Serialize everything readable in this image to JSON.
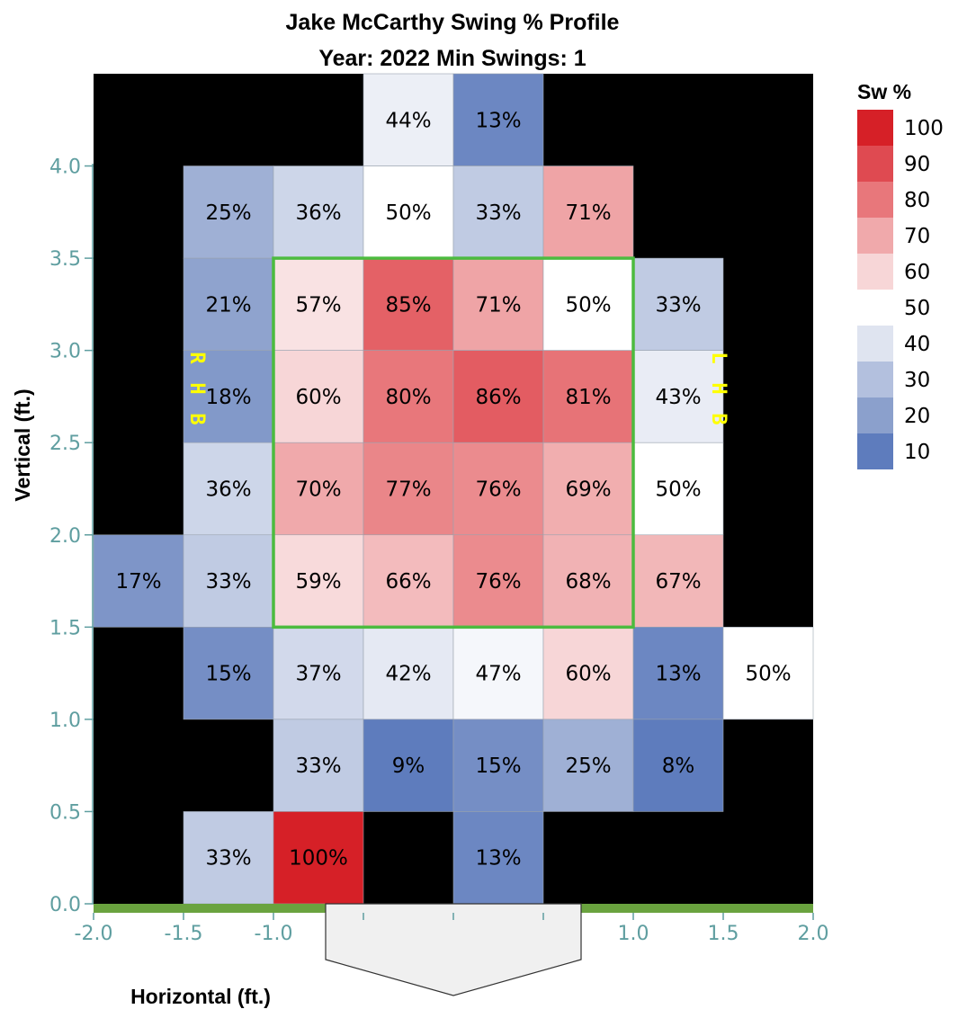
{
  "chart_data": {
    "type": "heatmap",
    "title": "Jake McCarthy Swing % Profile",
    "subtitle": "Year: 2022 Min Swings: 1",
    "xlabel": "Horizontal (ft.)",
    "ylabel": "Vertical (ft.)",
    "xlim": [
      -2.0,
      2.0
    ],
    "ylim": [
      0.0,
      4.5
    ],
    "x_ticks": [
      "-2.0",
      "-1.5",
      "-1.0",
      "-0.5",
      "0.0",
      "0.5",
      "1.0",
      "1.5",
      "2.0"
    ],
    "x_tick_values": [
      -2.0,
      -1.5,
      -1.0,
      -0.5,
      0.0,
      0.5,
      1.0,
      1.5,
      2.0
    ],
    "y_ticks": [
      "0.0",
      "0.5",
      "1.0",
      "1.5",
      "2.0",
      "2.5",
      "3.0",
      "3.5",
      "4.0"
    ],
    "y_tick_values": [
      0.0,
      0.5,
      1.0,
      1.5,
      2.0,
      2.5,
      3.0,
      3.5,
      4.0
    ],
    "cell_width_ft": 0.5,
    "cell_height_ft": 0.5,
    "background_color": "#000000",
    "cells": [
      {
        "x0": -0.5,
        "y0": 4.0,
        "value": 44,
        "label": "44%"
      },
      {
        "x0": 0.0,
        "y0": 4.0,
        "value": 13,
        "label": "13%"
      },
      {
        "x0": -1.5,
        "y0": 3.5,
        "value": 25,
        "label": "25%"
      },
      {
        "x0": -1.0,
        "y0": 3.5,
        "value": 36,
        "label": "36%"
      },
      {
        "x0": -0.5,
        "y0": 3.5,
        "value": 50,
        "label": "50%"
      },
      {
        "x0": 0.0,
        "y0": 3.5,
        "value": 33,
        "label": "33%"
      },
      {
        "x0": 0.5,
        "y0": 3.5,
        "value": 71,
        "label": "71%"
      },
      {
        "x0": -1.5,
        "y0": 3.0,
        "value": 21,
        "label": "21%"
      },
      {
        "x0": -1.0,
        "y0": 3.0,
        "value": 57,
        "label": "57%"
      },
      {
        "x0": -0.5,
        "y0": 3.0,
        "value": 85,
        "label": "85%"
      },
      {
        "x0": 0.0,
        "y0": 3.0,
        "value": 71,
        "label": "71%"
      },
      {
        "x0": 0.5,
        "y0": 3.0,
        "value": 50,
        "label": "50%"
      },
      {
        "x0": 1.0,
        "y0": 3.0,
        "value": 33,
        "label": "33%"
      },
      {
        "x0": -1.5,
        "y0": 2.5,
        "value": 18,
        "label": "18%"
      },
      {
        "x0": -1.0,
        "y0": 2.5,
        "value": 60,
        "label": "60%"
      },
      {
        "x0": -0.5,
        "y0": 2.5,
        "value": 80,
        "label": "80%"
      },
      {
        "x0": 0.0,
        "y0": 2.5,
        "value": 86,
        "label": "86%"
      },
      {
        "x0": 0.5,
        "y0": 2.5,
        "value": 81,
        "label": "81%"
      },
      {
        "x0": 1.0,
        "y0": 2.5,
        "value": 43,
        "label": "43%"
      },
      {
        "x0": -1.5,
        "y0": 2.0,
        "value": 36,
        "label": "36%"
      },
      {
        "x0": -1.0,
        "y0": 2.0,
        "value": 70,
        "label": "70%"
      },
      {
        "x0": -0.5,
        "y0": 2.0,
        "value": 77,
        "label": "77%"
      },
      {
        "x0": 0.0,
        "y0": 2.0,
        "value": 76,
        "label": "76%"
      },
      {
        "x0": 0.5,
        "y0": 2.0,
        "value": 69,
        "label": "69%"
      },
      {
        "x0": 1.0,
        "y0": 2.0,
        "value": 50,
        "label": "50%"
      },
      {
        "x0": -2.0,
        "y0": 1.5,
        "value": 17,
        "label": "17%"
      },
      {
        "x0": -1.5,
        "y0": 1.5,
        "value": 33,
        "label": "33%"
      },
      {
        "x0": -1.0,
        "y0": 1.5,
        "value": 59,
        "label": "59%"
      },
      {
        "x0": -0.5,
        "y0": 1.5,
        "value": 66,
        "label": "66%"
      },
      {
        "x0": 0.0,
        "y0": 1.5,
        "value": 76,
        "label": "76%"
      },
      {
        "x0": 0.5,
        "y0": 1.5,
        "value": 68,
        "label": "68%"
      },
      {
        "x0": 1.0,
        "y0": 1.5,
        "value": 67,
        "label": "67%"
      },
      {
        "x0": -1.5,
        "y0": 1.0,
        "value": 15,
        "label": "15%"
      },
      {
        "x0": -1.0,
        "y0": 1.0,
        "value": 37,
        "label": "37%"
      },
      {
        "x0": -0.5,
        "y0": 1.0,
        "value": 42,
        "label": "42%"
      },
      {
        "x0": 0.0,
        "y0": 1.0,
        "value": 47,
        "label": "47%"
      },
      {
        "x0": 0.5,
        "y0": 1.0,
        "value": 60,
        "label": "60%"
      },
      {
        "x0": 1.0,
        "y0": 1.0,
        "value": 13,
        "label": "13%"
      },
      {
        "x0": 1.5,
        "y0": 1.0,
        "value": 50,
        "label": "50%"
      },
      {
        "x0": -1.0,
        "y0": 0.5,
        "value": 33,
        "label": "33%"
      },
      {
        "x0": -0.5,
        "y0": 0.5,
        "value": 9,
        "label": "9%"
      },
      {
        "x0": 0.0,
        "y0": 0.5,
        "value": 15,
        "label": "15%"
      },
      {
        "x0": 0.5,
        "y0": 0.5,
        "value": 25,
        "label": "25%"
      },
      {
        "x0": 1.0,
        "y0": 0.5,
        "value": 8,
        "label": "8%"
      },
      {
        "x0": -1.5,
        "y0": 0.0,
        "value": 33,
        "label": "33%"
      },
      {
        "x0": -1.0,
        "y0": 0.0,
        "value": 100,
        "label": "100%"
      },
      {
        "x0": 0.0,
        "y0": 0.0,
        "value": 13,
        "label": "13%"
      }
    ],
    "strike_zone": {
      "x": [
        -1.0,
        1.0
      ],
      "y": [
        1.5,
        3.5
      ],
      "color": "#4cbb3f"
    },
    "side_labels": {
      "left": [
        "R",
        "H",
        "B"
      ],
      "right": [
        "L",
        "H",
        "B"
      ]
    },
    "legend": {
      "title": "Sw %",
      "position": "right",
      "values": [
        100,
        90,
        80,
        70,
        60,
        50,
        40,
        30,
        20,
        10
      ],
      "colors": [
        "#d62027",
        "#df4a51",
        "#e8777b",
        "#f0a9ab",
        "#f7d6d7",
        "#ffffff",
        "#dfe4f0",
        "#b3c0de",
        "#8ba0cc",
        "#5e7cbd"
      ]
    },
    "grid": false
  }
}
